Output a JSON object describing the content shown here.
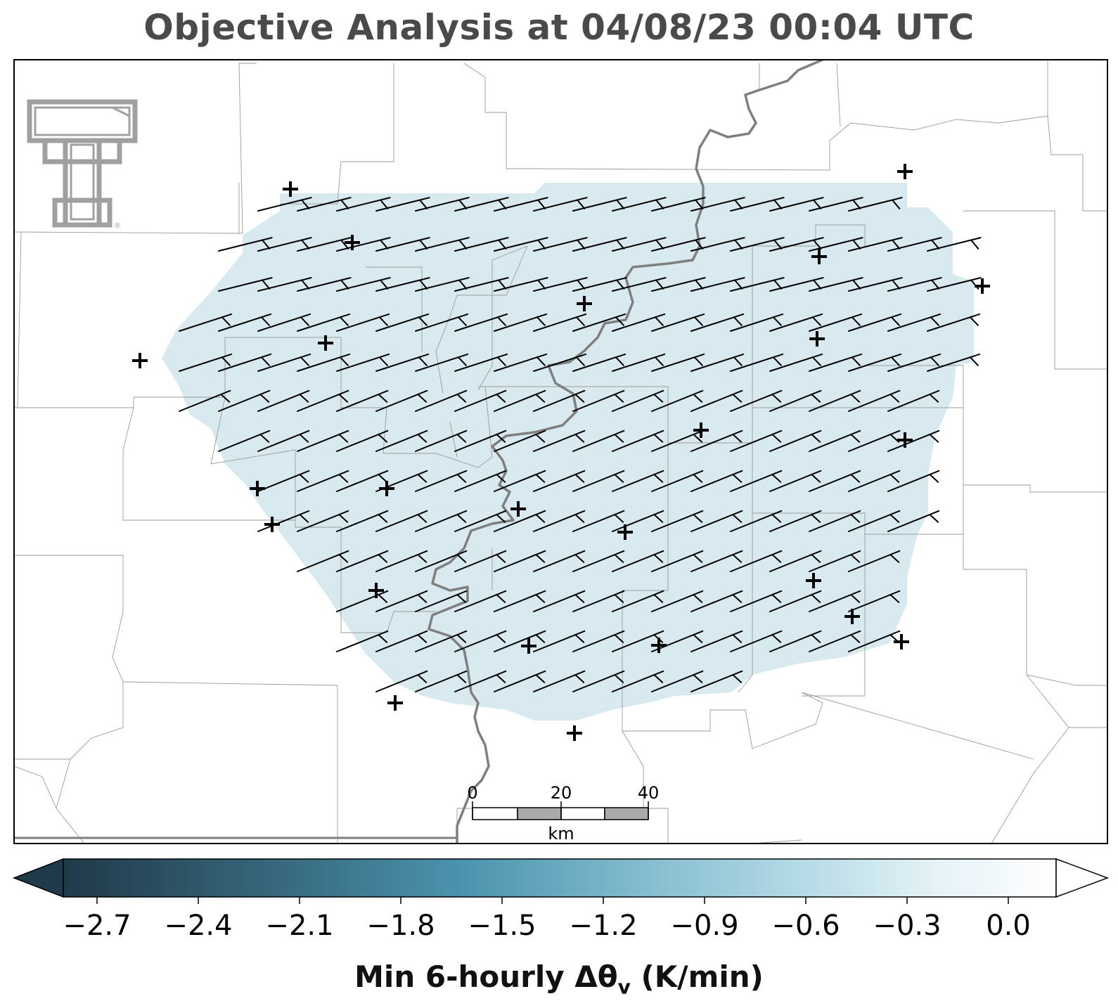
{
  "title": "Objective Analysis at 04/08/23 00:04 UTC",
  "logo": {
    "name": "texas-tech-double-t-logo",
    "text": "T",
    "mark": "®",
    "color": "#a0a0a0"
  },
  "scalebar": {
    "ticks": [
      "0",
      "20",
      "40"
    ],
    "unit": "km"
  },
  "colorbar": {
    "ticks": [
      "−2.7",
      "−2.4",
      "−2.1",
      "−1.8",
      "−1.5",
      "−1.2",
      "−0.9",
      "−0.6",
      "−0.3",
      "0.0"
    ],
    "label_main": "Min 6-hourly Δθ",
    "label_sub": "v",
    "label_unit": " (K/min)",
    "colors": {
      "dark": "#1f3a4a",
      "mid": "#4a93ad",
      "light": "#a9d3e1",
      "white": "#ffffff"
    },
    "extend": "both"
  },
  "field": {
    "fill_color": "#d8eaf0",
    "value_range": [
      -0.6,
      -0.3
    ]
  },
  "map": {
    "frame_color": "#000000",
    "county_color": "#999999",
    "river_color": "#7f7f7f"
  },
  "wind_barbs": {
    "color": "#000000",
    "direction": "west-southwest",
    "barb": "half/full"
  },
  "stations": {
    "marker": "+",
    "count": 25
  }
}
